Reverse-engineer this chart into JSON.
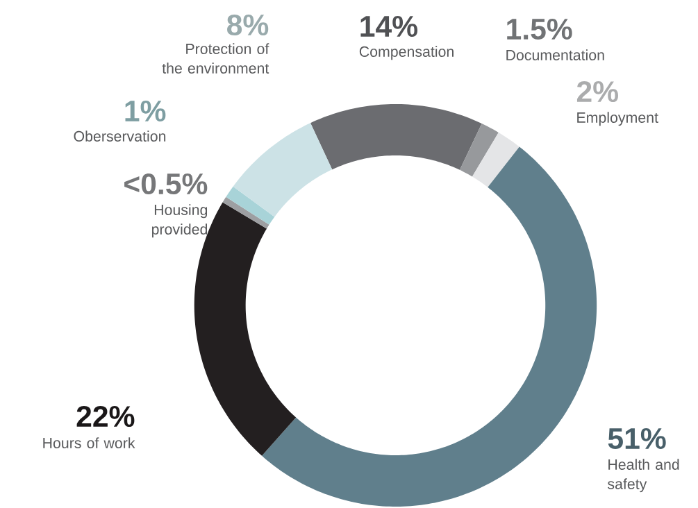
{
  "chart_data": {
    "type": "donut",
    "categories": [
      "Compensation",
      "Documentation",
      "Employment",
      "Health and safety",
      "Hours of work",
      "Housing provided",
      "Oberservation",
      "Protection of the environment"
    ],
    "values": [
      14,
      1.5,
      2,
      51,
      22,
      0.5,
      1,
      8
    ],
    "value_labels": [
      "14%",
      "1.5%",
      "2%",
      "51%",
      "22%",
      "<0.5%",
      "1%",
      "8%"
    ],
    "colors": [
      "#6b6c70",
      "#97999c",
      "#e4e5e7",
      "#607f8c",
      "#231f20",
      "#9d9fa2",
      "#a8d3d8",
      "#cce2e6"
    ]
  }
}
